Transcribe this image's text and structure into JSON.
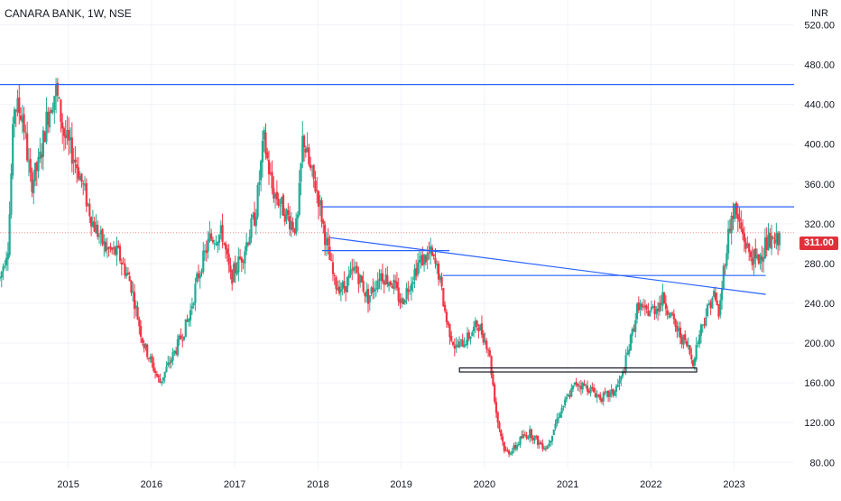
{
  "header": {
    "title": "CANARA BANK, 1W, NSE",
    "currency": "INR"
  },
  "last_price_label": "311.00",
  "colors": {
    "up": "#22ab94",
    "down": "#f23645",
    "trendline": "#2962ff",
    "zone": "#131722",
    "last_price": "#e0313b",
    "grid": "#f0f3fa"
  },
  "chart_data": {
    "type": "candlestick",
    "title": "CANARA BANK, 1W, NSE",
    "y_unit": "INR",
    "ylim": [
      73,
      545
    ],
    "y_ticks": [
      {
        "v": 520,
        "label": "520.00"
      },
      {
        "v": 480,
        "label": "480.00"
      },
      {
        "v": 440,
        "label": "440.00"
      },
      {
        "v": 400,
        "label": "400.00"
      },
      {
        "v": 360,
        "label": "360.00"
      },
      {
        "v": 320,
        "label": "320.00"
      },
      {
        "v": 280,
        "label": "280.00"
      },
      {
        "v": 240,
        "label": "240.00"
      },
      {
        "v": 200,
        "label": "200.00"
      },
      {
        "v": 160,
        "label": "160.00"
      },
      {
        "v": 120,
        "label": "120.00"
      },
      {
        "v": 80,
        "label": "80.00"
      }
    ],
    "xlim": [
      2014.18,
      2023.72
    ],
    "x_ticks": [
      {
        "v": 2015,
        "label": "2015"
      },
      {
        "v": 2016,
        "label": "2016"
      },
      {
        "v": 2017,
        "label": "2017"
      },
      {
        "v": 2018,
        "label": "2018"
      },
      {
        "v": 2019,
        "label": "2019"
      },
      {
        "v": 2020,
        "label": "2020"
      },
      {
        "v": 2021,
        "label": "2021"
      },
      {
        "v": 2022,
        "label": "2022"
      },
      {
        "v": 2023,
        "label": "2023"
      }
    ],
    "last_price": 311,
    "price_path": [
      [
        2014.18,
        265
      ],
      [
        2014.28,
        300
      ],
      [
        2014.35,
        440
      ],
      [
        2014.45,
        430
      ],
      [
        2014.55,
        360
      ],
      [
        2014.65,
        380
      ],
      [
        2014.75,
        430
      ],
      [
        2014.85,
        455
      ],
      [
        2014.95,
        410
      ],
      [
        2015.1,
        380
      ],
      [
        2015.3,
        320
      ],
      [
        2015.45,
        295
      ],
      [
        2015.6,
        290
      ],
      [
        2015.75,
        260
      ],
      [
        2015.9,
        200
      ],
      [
        2016.1,
        160
      ],
      [
        2016.3,
        195
      ],
      [
        2016.45,
        225
      ],
      [
        2016.55,
        265
      ],
      [
        2016.7,
        305
      ],
      [
        2016.85,
        310
      ],
      [
        2016.95,
        265
      ],
      [
        2017.1,
        290
      ],
      [
        2017.25,
        330
      ],
      [
        2017.35,
        405
      ],
      [
        2017.45,
        355
      ],
      [
        2017.55,
        340
      ],
      [
        2017.65,
        325
      ],
      [
        2017.75,
        315
      ],
      [
        2017.82,
        410
      ],
      [
        2017.9,
        375
      ],
      [
        2018.0,
        350
      ],
      [
        2018.1,
        300
      ],
      [
        2018.2,
        260
      ],
      [
        2018.3,
        255
      ],
      [
        2018.45,
        275
      ],
      [
        2018.6,
        245
      ],
      [
        2018.75,
        270
      ],
      [
        2018.9,
        260
      ],
      [
        2019.0,
        240
      ],
      [
        2019.2,
        280
      ],
      [
        2019.35,
        290
      ],
      [
        2019.45,
        270
      ],
      [
        2019.55,
        220
      ],
      [
        2019.65,
        195
      ],
      [
        2019.8,
        205
      ],
      [
        2019.92,
        220
      ],
      [
        2020.05,
        195
      ],
      [
        2020.15,
        125
      ],
      [
        2020.25,
        90
      ],
      [
        2020.35,
        93
      ],
      [
        2020.45,
        105
      ],
      [
        2020.55,
        110
      ],
      [
        2020.65,
        100
      ],
      [
        2020.75,
        95
      ],
      [
        2020.9,
        130
      ],
      [
        2021.1,
        160
      ],
      [
        2021.25,
        155
      ],
      [
        2021.4,
        145
      ],
      [
        2021.55,
        150
      ],
      [
        2021.65,
        165
      ],
      [
        2021.75,
        200
      ],
      [
        2021.85,
        240
      ],
      [
        2021.92,
        230
      ],
      [
        2022.05,
        235
      ],
      [
        2022.15,
        245
      ],
      [
        2022.3,
        215
      ],
      [
        2022.45,
        195
      ],
      [
        2022.5,
        180
      ],
      [
        2022.6,
        215
      ],
      [
        2022.75,
        250
      ],
      [
        2022.82,
        228
      ],
      [
        2022.88,
        280
      ],
      [
        2022.95,
        320
      ],
      [
        2023.0,
        335
      ],
      [
        2023.08,
        315
      ],
      [
        2023.18,
        290
      ],
      [
        2023.28,
        282
      ],
      [
        2023.38,
        300
      ],
      [
        2023.5,
        300
      ],
      [
        2023.55,
        311
      ]
    ],
    "lines": [
      {
        "type": "horizontal",
        "y": 460,
        "x": [
          2014.18,
          2023.72
        ]
      },
      {
        "type": "horizontal",
        "y": 337,
        "x": [
          2018.05,
          2023.72
        ]
      },
      {
        "type": "horizontal",
        "y": 293,
        "x": [
          2018.05,
          2019.58
        ]
      },
      {
        "type": "horizontal",
        "y": 268,
        "x": [
          2019.5,
          2023.38
        ]
      },
      {
        "type": "trend",
        "x1": 2018.15,
        "y1": 306,
        "x2": 2023.38,
        "y2": 249
      }
    ],
    "zones": [
      {
        "x": [
          2019.7,
          2022.55
        ],
        "y": [
          171,
          175
        ]
      }
    ]
  }
}
